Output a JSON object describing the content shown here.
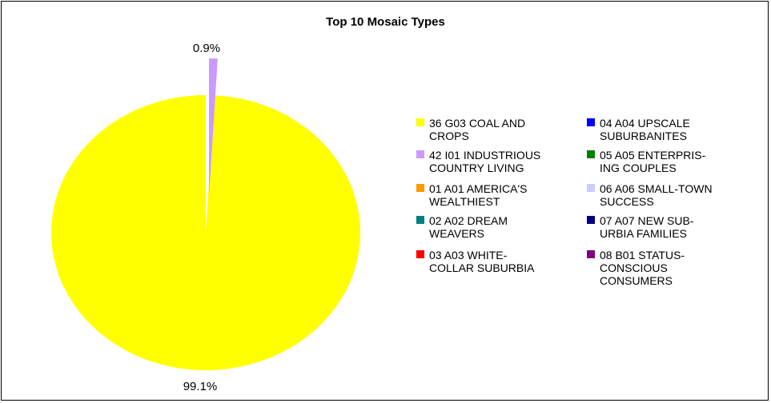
{
  "chart_data": {
    "type": "pie",
    "title": "Top 10 Mosaic Types",
    "slices": [
      {
        "name": "36 G03 COAL AND\nCROPS",
        "value": 99.1,
        "label": "99.1%",
        "color": "#ffff00"
      },
      {
        "name": "42 I01 INDUSTRIOUS\nCOUNTRY LIVING",
        "value": 0.9,
        "label": "0.9%",
        "color": "#cc99ff"
      },
      {
        "name": "01 A01 AMERICA'S\nWEALTHIEST",
        "value": 0,
        "label": "",
        "color": "#ff9900"
      },
      {
        "name": "02 A02 DREAM\nWEAVERS",
        "value": 0,
        "label": "",
        "color": "#008080"
      },
      {
        "name": "03 A03 WHITE-\nCOLLAR SUBURBIA",
        "value": 0,
        "label": "",
        "color": "#ff0000"
      },
      {
        "name": "04 A04 UPSCALE\nSUBURBANITES",
        "value": 0,
        "label": "",
        "color": "#0000ff"
      },
      {
        "name": "05 A05 ENTERPRIS-\nING COUPLES",
        "value": 0,
        "label": "",
        "color": "#008000"
      },
      {
        "name": "06 A06 SMALL-TOWN\nSUCCESS",
        "value": 0,
        "label": "",
        "color": "#ccccff"
      },
      {
        "name": "07 A07 NEW SUB-\nURBIA FAMILIES",
        "value": 0,
        "label": "",
        "color": "#000080"
      },
      {
        "name": "08 B01 STATUS-\nCONSCIOUS\nCONSUMERS",
        "value": 0,
        "label": "",
        "color": "#800080"
      }
    ],
    "legend_position": "right"
  }
}
